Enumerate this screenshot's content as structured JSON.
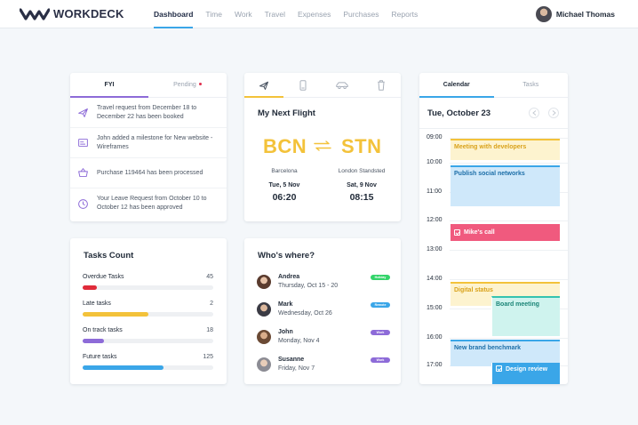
{
  "header": {
    "logo_text": "WORKDECK",
    "nav": [
      "Dashboard",
      "Time",
      "Work",
      "Travel",
      "Expenses",
      "Purchases",
      "Reports"
    ],
    "active_nav": "Dashboard",
    "user_name": "Michael Thomas"
  },
  "fyi": {
    "tabs": [
      "FYI",
      "Pending"
    ],
    "items": [
      {
        "icon": "plane-icon",
        "text": "Travel request from December 18 to December 22 has been booked"
      },
      {
        "icon": "milestone-icon",
        "text": "John added a milestone for New website - Wireframes"
      },
      {
        "icon": "basket-icon",
        "text": "Purchase 119464 has been processed"
      },
      {
        "icon": "clock-icon",
        "text": "Your Leave Request from October 10 to October 12 has been approved"
      }
    ]
  },
  "flight": {
    "title": "My Next Flight",
    "from": {
      "code": "BCN",
      "city": "Barcelona",
      "date": "Tue, 5 Nov",
      "time": "06:20"
    },
    "to": {
      "code": "STN",
      "city": "London Standsted",
      "date": "Sat, 9 Nov",
      "time": "08:15"
    }
  },
  "calendar": {
    "tabs": [
      "Calendar",
      "Tasks"
    ],
    "date": "Tue, October 23",
    "hours": [
      "09:00",
      "10:00",
      "11:00",
      "12:00",
      "13:00",
      "14:00",
      "15:00",
      "16:00",
      "17:00"
    ],
    "events": {
      "dev": "Meeting with developers",
      "social": "Publish social networks",
      "mike": "Mike's call",
      "status": "Digital status",
      "board": "Board meeting",
      "bench": "New brand benchmark",
      "design": "Design review"
    }
  },
  "tasks": {
    "title": "Tasks Count",
    "rows": [
      {
        "label": "Overdue Tasks",
        "count": "45",
        "progress": 0.11,
        "color": "#e02b3a"
      },
      {
        "label": "Late tasks",
        "count": "2",
        "progress": 0.5,
        "color": "#f3c23a"
      },
      {
        "label": "On track tasks",
        "count": "18",
        "progress": 0.16,
        "color": "#8d6bd8"
      },
      {
        "label": "Future tasks",
        "count": "125",
        "progress": 0.62,
        "color": "#3aa6e8"
      }
    ]
  },
  "where": {
    "title": "Who's where?",
    "people": [
      {
        "name": "Andrea",
        "date": "Thursday, Oct 15 - 20",
        "badge": "Holiday",
        "color": "#33d46a"
      },
      {
        "name": "Mark",
        "date": "Wednesday, Oct 26",
        "badge": "Remote",
        "color": "#3aa6e8"
      },
      {
        "name": "John",
        "date": "Monday, Nov 4",
        "badge": "Work",
        "color": "#8d6bd8"
      },
      {
        "name": "Susanne",
        "date": "Friday, Nov 7",
        "badge": "Work",
        "color": "#8d6bd8"
      }
    ]
  }
}
